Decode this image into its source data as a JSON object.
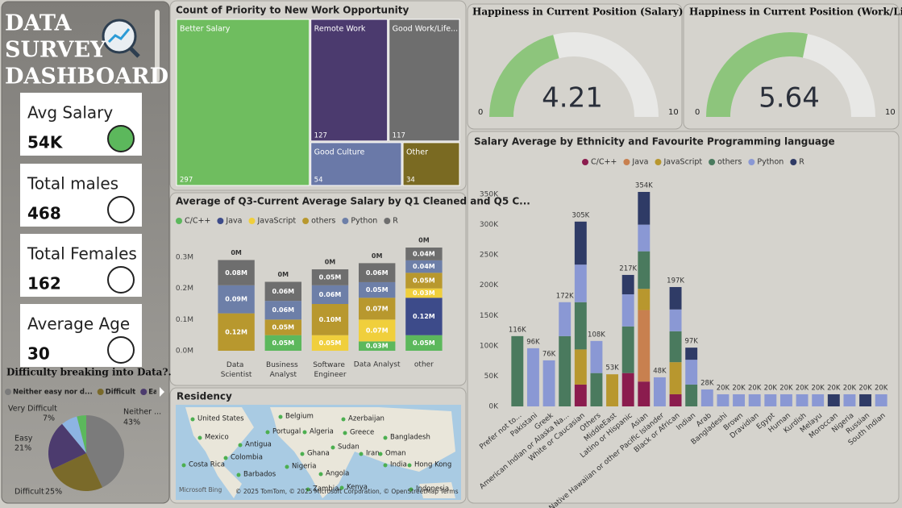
{
  "header": {
    "title_lines": [
      "DATA",
      "SURVEY",
      "DASHBOARD"
    ]
  },
  "cards": [
    {
      "label": "Avg Salary",
      "value": "54K"
    },
    {
      "label": "Total males",
      "value": "468"
    },
    {
      "label": "Total Females",
      "value": "162"
    },
    {
      "label": "Average Age",
      "value": "30"
    }
  ],
  "map": {
    "title": "Residency",
    "places": [
      "United States",
      "Belgium",
      "Azerbaijan",
      "Mexico",
      "Portugal",
      "Algeria",
      "Greece",
      "Bangladesh",
      "Antigua",
      "Sudan",
      "Colombia",
      "Ghana",
      "Iran",
      "Oman",
      "Costa Rica",
      "Nigeria",
      "India",
      "Hong Kong",
      "Barbados",
      "Angola",
      "Zambia",
      "Kenya",
      "Indonesia"
    ],
    "attribution": "© 2025 TomTom, © 2025 Microsoft Corporation, © OpenStreetMap Terms",
    "brand": "Microsoft Bing"
  },
  "chart_data": [
    {
      "type": "pie",
      "title": "Difficulty breaking into Data?.",
      "categories": [
        "Neither easy nor d...",
        "Difficult",
        "Easy",
        "Very Difficult",
        null
      ],
      "label_names": [
        "Neither ...",
        "Difficult",
        "Easy",
        "Very Difficult",
        null
      ],
      "values": [
        43,
        25,
        21,
        7,
        4
      ],
      "value_labels": [
        "43%",
        "25%",
        "21%",
        "7%",
        null
      ],
      "colors": [
        "#7b7b7b",
        "#7a6a2a",
        "#4c3b6e",
        "#8db4e2",
        "#5cb85c"
      ]
    },
    {
      "type": "treemap",
      "title": "Count of Priority to New Work Opportunity",
      "categories": [
        "Better Salary",
        "Remote Work",
        "Good Work/Life...",
        "Good Culture",
        "Other"
      ],
      "values": [
        297,
        127,
        117,
        54,
        34
      ],
      "colors": [
        "#6fbd5f",
        "#4b3a6e",
        "#6e6e6e",
        "#6a79a8",
        "#7a6a22"
      ]
    },
    {
      "type": "stacked-bar",
      "title": "Average of Q3-Current Average Salary by Q1 Cleaned and Q5 C...",
      "categories": [
        "Data Scientist",
        "Business Analyst",
        "Software Engineer",
        "Data Analyst",
        "other"
      ],
      "series": [
        {
          "name": "C/C++",
          "color": "#5cb85c",
          "values": [
            null,
            50000,
            null,
            30000,
            50000
          ],
          "value_labels": [
            null,
            "0.05M",
            null,
            "0.03M",
            "0.05M"
          ]
        },
        {
          "name": "Java",
          "color": "#3d4b8a",
          "values": [
            null,
            null,
            null,
            null,
            120000
          ],
          "value_labels": [
            null,
            null,
            null,
            null,
            "0.12M"
          ]
        },
        {
          "name": "JavaScript",
          "color": "#f0cf3c",
          "values": [
            null,
            null,
            50000,
            70000,
            30000
          ],
          "value_labels": [
            null,
            null,
            "0.05M",
            "0.07M",
            "0.03M"
          ]
        },
        {
          "name": "others",
          "color": "#b8982e",
          "values": [
            120000,
            50000,
            100000,
            70000,
            50000
          ],
          "value_labels": [
            "0.12M",
            "0.05M",
            "0.10M",
            "0.07M",
            "0.05M"
          ]
        },
        {
          "name": "Python",
          "color": "#6d7fa8",
          "values": [
            90000,
            60000,
            60000,
            50000,
            40000
          ],
          "value_labels": [
            "0.09M",
            "0.06M",
            "0.06M",
            "0.05M",
            "0.04M"
          ]
        },
        {
          "name": "R",
          "color": "#6e6e6e",
          "values": [
            80000,
            60000,
            50000,
            60000,
            40000
          ],
          "value_labels": [
            "0.08M",
            "0.06M",
            "0.05M",
            "0.06M",
            "0.04M"
          ]
        },
        {
          "name": null,
          "color": "#555555",
          "values": [
            1000,
            1000,
            1000,
            1000,
            1000
          ],
          "value_labels": [
            "0M",
            "0M",
            "0M",
            "0M",
            "0M"
          ]
        }
      ],
      "ylim": [
        0,
        330000
      ],
      "yticks": [
        {
          "value": 0,
          "label": "0.0M"
        },
        {
          "value": 100000,
          "label": "0.1M"
        },
        {
          "value": 200000,
          "label": "0.2M"
        },
        {
          "value": 300000,
          "label": "0.3M"
        }
      ],
      "grid": false
    },
    {
      "type": "gauge",
      "title": "Happiness in Current Position (Salary)",
      "value": 4.21,
      "min": 0,
      "max": 10,
      "color": "#8dc57c"
    },
    {
      "type": "gauge",
      "title": "Happiness in Current Position (Work/Life) Balance",
      "value": 5.64,
      "min": 0,
      "max": 10,
      "color": "#8dc57c"
    },
    {
      "type": "stacked-bar",
      "title": "Salary Average by Ethnicity and Favourite Programming language",
      "categories": [
        "Prefer not to...",
        "Pakistani",
        "Greek",
        "American Indian or Alaska Na...",
        "White or Caucasian",
        "Others",
        "MiddleEast",
        "Latino or Hispanic",
        "Asian",
        "Native Hawaiian or other Pacific Islander",
        "Black or African",
        "Indian",
        "Arab",
        "Bangladeshi",
        "Brown",
        "Dravidian",
        "Egypt",
        "Human",
        "Kurdish",
        "Melayu",
        "Moroccan",
        "Nigeria",
        "Russian",
        "South Indian"
      ],
      "series": [
        {
          "name": "C/C++",
          "color": "#8b1c4e",
          "values": [
            null,
            null,
            null,
            null,
            36000,
            null,
            null,
            55000,
            41000,
            null,
            20000,
            null,
            null,
            null,
            null,
            null,
            null,
            null,
            null,
            null,
            null,
            null,
            null,
            null
          ]
        },
        {
          "name": "Java",
          "color": "#c8804f",
          "values": [
            null,
            null,
            null,
            null,
            null,
            null,
            null,
            null,
            118000,
            null,
            null,
            null,
            null,
            null,
            null,
            null,
            null,
            null,
            null,
            null,
            null,
            null,
            null,
            null
          ]
        },
        {
          "name": "JavaScript",
          "color": "#b8972e",
          "values": [
            null,
            null,
            null,
            null,
            58000,
            null,
            53000,
            null,
            35000,
            null,
            53000,
            null,
            null,
            null,
            null,
            null,
            null,
            null,
            null,
            null,
            null,
            null,
            null,
            null
          ]
        },
        {
          "name": "others",
          "color": "#4a7a5e",
          "values": [
            116000,
            null,
            null,
            116000,
            78000,
            55000,
            null,
            77000,
            62000,
            null,
            51000,
            36000,
            null,
            null,
            null,
            null,
            null,
            null,
            null,
            null,
            null,
            null,
            null,
            null
          ]
        },
        {
          "name": "Python",
          "color": "#8a98d4",
          "values": [
            null,
            96000,
            76000,
            56000,
            62000,
            53000,
            null,
            53000,
            44000,
            48000,
            36000,
            41000,
            28000,
            20000,
            20000,
            20000,
            20000,
            20000,
            20000,
            20000,
            null,
            20000,
            null,
            20000
          ]
        },
        {
          "name": "R",
          "color": "#2f3b66",
          "values": [
            null,
            null,
            null,
            null,
            71000,
            null,
            null,
            32000,
            54000,
            null,
            37000,
            20000,
            null,
            null,
            null,
            null,
            null,
            null,
            null,
            null,
            20000,
            null,
            20000,
            null
          ]
        }
      ],
      "totals": [
        116000,
        96000,
        76000,
        172000,
        305000,
        108000,
        53000,
        217000,
        354000,
        48000,
        197000,
        97000,
        28000,
        20000,
        20000,
        20000,
        20000,
        20000,
        20000,
        20000,
        20000,
        20000,
        20000,
        20000
      ],
      "total_labels": [
        "116K",
        "96K",
        "76K",
        "172K",
        "305K",
        "108K",
        "53K",
        "217K",
        "354K",
        "48K",
        "197K",
        "97K",
        "28K",
        "20K",
        "20K",
        "20K",
        "20K",
        "20K",
        "20K",
        "20K",
        "20K",
        "20K",
        "20K",
        "20K"
      ],
      "ylim": [
        0,
        360000
      ],
      "yticks": [
        {
          "value": 0,
          "label": "0K"
        },
        {
          "value": 50000,
          "label": "50K"
        },
        {
          "value": 100000,
          "label": "100K"
        },
        {
          "value": 150000,
          "label": "150K"
        },
        {
          "value": 200000,
          "label": "200K"
        },
        {
          "value": 250000,
          "label": "250K"
        },
        {
          "value": 300000,
          "label": "300K"
        },
        {
          "value": 350000,
          "label": "350K"
        }
      ],
      "grid": false
    }
  ]
}
